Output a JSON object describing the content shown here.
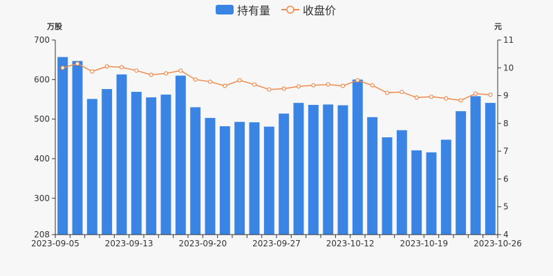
{
  "legend": {
    "bar_label": "持有量",
    "line_label": "收盘价"
  },
  "colors": {
    "bar": "#3a84e4",
    "line": "#f08a4b",
    "axis": "#333333",
    "background": "#f7f7f7"
  },
  "chart_data": {
    "type": "bar+line",
    "legend_position": "top-center",
    "grid": false,
    "left_axis": {
      "unit": "万股",
      "ylim": [
        208,
        700
      ],
      "ticks": [
        208,
        300,
        400,
        500,
        600,
        700
      ]
    },
    "right_axis": {
      "unit": "元",
      "ylim": [
        4,
        11
      ],
      "ticks": [
        4,
        5,
        6,
        7,
        8,
        9,
        10,
        11
      ]
    },
    "x_tick_labels": [
      "2023-09-05",
      "2023-09-13",
      "2023-09-20",
      "2023-09-27",
      "2023-10-12",
      "2023-10-19",
      "2023-10-26"
    ],
    "x_tick_indices": [
      0,
      5,
      10,
      15,
      20,
      25,
      30
    ],
    "series": [
      {
        "name": "持有量",
        "kind": "bar",
        "axis": "left",
        "values": [
          657,
          647,
          551,
          576,
          613,
          569,
          555,
          562,
          610,
          530,
          503,
          482,
          493,
          492,
          481,
          514,
          541,
          536,
          537,
          535,
          600,
          505,
          454,
          472,
          421,
          416,
          448,
          520,
          558,
          541
        ]
      },
      {
        "name": "收盘价",
        "kind": "line",
        "axis": "right",
        "values": [
          10.0,
          10.15,
          9.87,
          10.05,
          10.02,
          9.9,
          9.75,
          9.8,
          9.9,
          9.58,
          9.5,
          9.35,
          9.55,
          9.4,
          9.22,
          9.25,
          9.33,
          9.37,
          9.4,
          9.35,
          9.55,
          9.37,
          9.1,
          9.13,
          8.93,
          8.96,
          8.9,
          8.83,
          9.07,
          9.03
        ]
      }
    ]
  }
}
